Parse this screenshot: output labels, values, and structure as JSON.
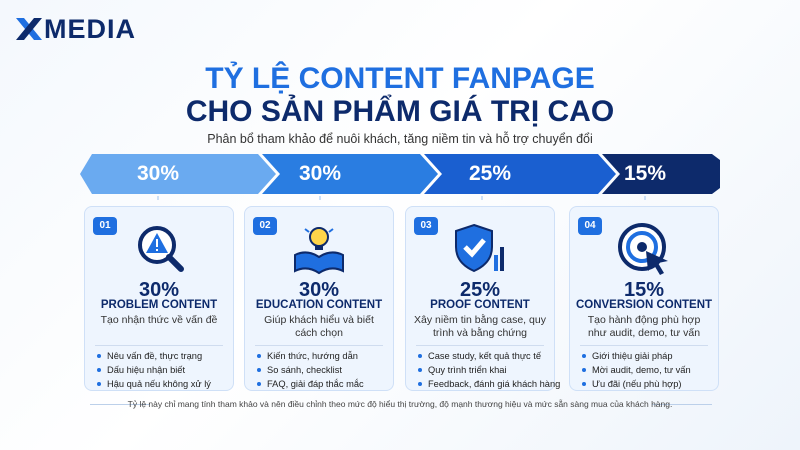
{
  "logo": {
    "text": "MEDIA"
  },
  "header": {
    "title_line1": "TỶ LỆ CONTENT FANPAGE",
    "title_line2": "CHO SẢN PHẨM GIÁ TRỊ CAO",
    "subtitle": "Phân bổ tham khảo để nuôi khách, tăng niềm tin và hỗ trợ chuyển đổi"
  },
  "progress": [
    "30%",
    "30%",
    "25%",
    "15%"
  ],
  "cards": [
    {
      "number": "01",
      "percent": "30%",
      "title": "PROBLEM CONTENT",
      "description": "Tạo nhận thức về vấn đề",
      "bullets": [
        "Nêu vấn đề, thực trạng",
        "Dấu hiệu nhận biết",
        "Hậu quả nếu không xử lý"
      ]
    },
    {
      "number": "02",
      "percent": "30%",
      "title": "EDUCATION CONTENT",
      "description": "Giúp khách hiểu và biết cách chọn",
      "bullets": [
        "Kiến thức, hướng dẫn",
        "So sánh, checklist",
        "FAQ, giải đáp thắc mắc"
      ]
    },
    {
      "number": "03",
      "percent": "25%",
      "title": "PROOF CONTENT",
      "description": "Xây niềm tin bằng case, quy trình và bằng chứng",
      "bullets": [
        "Case study, kết quả thực tế",
        "Quy trình triển khai",
        "Feedback, đánh giá khách hàng"
      ]
    },
    {
      "number": "04",
      "percent": "15%",
      "title": "CONVERSION CONTENT",
      "description": "Tạo hành động phù hợp như audit, demo, tư vấn",
      "bullets": [
        "Giới thiệu giải pháp",
        "Mời audit, demo, tư vấn",
        "Ưu đãi (nếu phù hợp)"
      ]
    }
  ],
  "footnote": "Tỷ lệ này chỉ mang tính tham khảo và nên điều chỉnh theo mức độ hiểu thị trường, độ mạnh thương hiệu và mức sẵn sàng mua của khách hàng."
}
